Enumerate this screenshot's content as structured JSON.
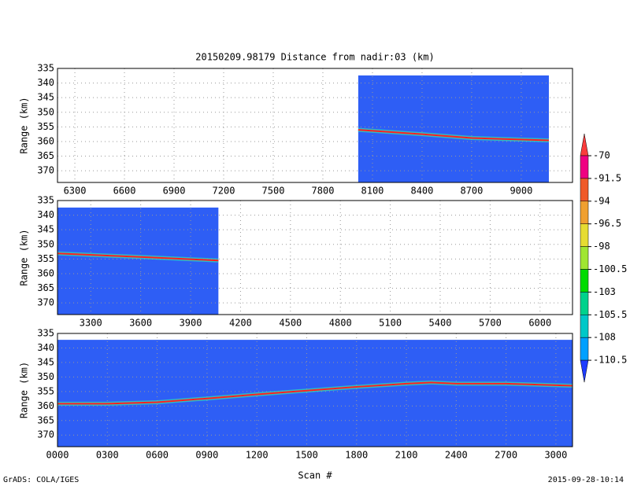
{
  "chart_data": [
    {
      "type": "line",
      "title": "20150209.98179    Distance from nadir:03 (km)",
      "ylabel": "Range (km)",
      "xlim": [
        6195,
        9310
      ],
      "xticks": [
        6300,
        6600,
        6900,
        7200,
        7500,
        7800,
        8100,
        8400,
        8700,
        9000
      ],
      "ylim": [
        335,
        374
      ],
      "y_inverted": true,
      "yticks": [
        335,
        340,
        345,
        350,
        355,
        360,
        365,
        370
      ],
      "grid": true,
      "coverage": {
        "color": "#2e5ef5",
        "x": [
          8014,
          9167
        ],
        "y": [
          337.4,
          374
        ]
      },
      "series": [
        {
          "color": "#ff2020",
          "x": [
            8014,
            8400,
            8700,
            9167
          ],
          "values": [
            356,
            357.5,
            358.8,
            359.6
          ]
        }
      ]
    },
    {
      "type": "line",
      "ylabel": "Range (km)",
      "xlim": [
        3100,
        6195
      ],
      "xticks": [
        3300,
        3600,
        3900,
        4200,
        4500,
        4800,
        5100,
        5400,
        5700,
        6000
      ],
      "ylim": [
        335,
        374
      ],
      "y_inverted": true,
      "yticks": [
        335,
        340,
        345,
        350,
        355,
        360,
        365,
        370
      ],
      "grid": true,
      "coverage": {
        "color": "#2e5ef5",
        "x": [
          3100,
          4067
        ],
        "y": [
          337.4,
          374
        ]
      },
      "series": [
        {
          "color": "#ff2020",
          "x": [
            3100,
            3600,
            4067
          ],
          "values": [
            353.1,
            354.3,
            355.5
          ]
        }
      ]
    },
    {
      "type": "line",
      "ylabel": "Range (km)",
      "xlabel": "Scan #",
      "xlim": [
        0,
        3100
      ],
      "xticks": [
        {
          "value": 0,
          "label": "0000"
        },
        {
          "value": 300,
          "label": "0300"
        },
        {
          "value": 600,
          "label": "0600"
        },
        {
          "value": 900,
          "label": "0900"
        },
        1200,
        1500,
        1800,
        2100,
        2400,
        2700,
        3000
      ],
      "ylim": [
        335,
        374
      ],
      "y_inverted": true,
      "yticks": [
        335,
        340,
        345,
        350,
        355,
        360,
        365,
        370
      ],
      "grid": true,
      "coverage": {
        "color": "#2e5ef5",
        "x": [
          0,
          3100
        ],
        "y": [
          337.2,
          374
        ]
      },
      "series": [
        {
          "color": "#ff2020",
          "x": [
            0,
            300,
            600,
            900,
            1200,
            1500,
            1800,
            2100,
            2250,
            2400,
            2700,
            3100
          ],
          "values": [
            359.2,
            359.2,
            358.7,
            357.4,
            356,
            354.7,
            353.4,
            352.3,
            351.9,
            352.3,
            352.3,
            353
          ]
        }
      ]
    }
  ],
  "colorbar": {
    "labels": [
      -70,
      -91.5,
      -94,
      -96.5,
      -98,
      -100.5,
      -103,
      -105.5,
      -108,
      -110.5
    ],
    "colors": [
      "#fa3c3c",
      "#f00082",
      "#f05a28",
      "#f0a030",
      "#e6dc32",
      "#a0e632",
      "#00dc00",
      "#00d28c",
      "#00c8c8",
      "#00a0ff",
      "#1e3cff"
    ]
  },
  "footer": {
    "left": "GrADS: COLA/IGES",
    "right": "2015-09-28-10:14"
  }
}
